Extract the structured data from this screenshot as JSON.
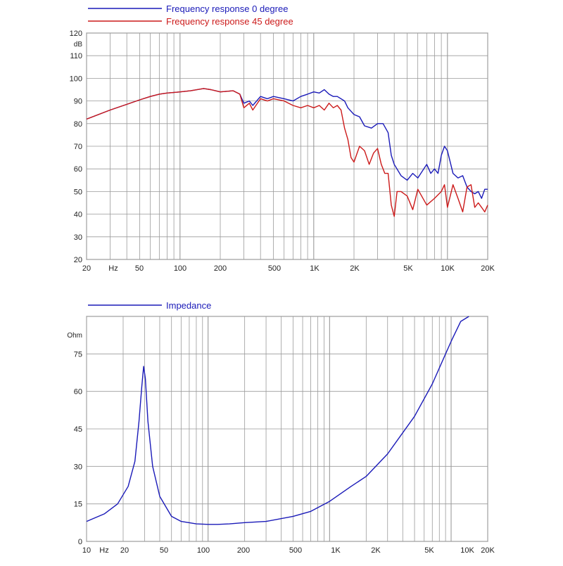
{
  "chart_data": [
    {
      "type": "line",
      "xscale": "log",
      "xlim": [
        20,
        20000
      ],
      "ylim": [
        20,
        120
      ],
      "grid": true,
      "legend_position": "top-left",
      "ylabel": "dB",
      "x_ticks": [
        "20",
        "Hz",
        "50",
        "100",
        "200",
        "500",
        "1K",
        "2K",
        "5K",
        "10K",
        "20K"
      ],
      "y_ticks": [
        "20",
        "30",
        "40",
        "50",
        "60",
        "70",
        "80",
        "90",
        "100",
        "110",
        "120"
      ],
      "colors": {
        "series0": "#1a1ab8",
        "series1": "#cc1a1a"
      },
      "series": [
        {
          "name": "Frequency response 0 degree",
          "x": [
            20,
            30,
            40,
            50,
            60,
            70,
            80,
            100,
            120,
            150,
            170,
            200,
            250,
            280,
            300,
            330,
            350,
            400,
            450,
            500,
            600,
            700,
            800,
            900,
            1000,
            1100,
            1200,
            1300,
            1400,
            1500,
            1700,
            1800,
            2000,
            2200,
            2400,
            2700,
            3000,
            3300,
            3600,
            3800,
            4000,
            4500,
            5000,
            5500,
            6000,
            7000,
            7500,
            8000,
            8500,
            9000,
            9500,
            10000,
            11000,
            12000,
            13000,
            14000,
            15000,
            16000,
            17000,
            18000,
            19000,
            20000
          ],
          "y": [
            82,
            86,
            88.5,
            90.5,
            92,
            93,
            93.5,
            94,
            94.5,
            95.5,
            95,
            94,
            94.5,
            93,
            89,
            90,
            88,
            92,
            91,
            92,
            91,
            90,
            92,
            93,
            94,
            93.5,
            95,
            93,
            92,
            92,
            90,
            87,
            84,
            83,
            79,
            78,
            80,
            80,
            76,
            66,
            62,
            57,
            55,
            58,
            56,
            62,
            58,
            60,
            58,
            66,
            70,
            68,
            58,
            56,
            57,
            52,
            50,
            49,
            50,
            47,
            51,
            51
          ]
        },
        {
          "name": "Frequency response 45 degree",
          "x": [
            20,
            30,
            40,
            50,
            60,
            70,
            80,
            100,
            120,
            150,
            170,
            200,
            250,
            280,
            300,
            330,
            350,
            400,
            450,
            500,
            600,
            700,
            800,
            900,
            1000,
            1100,
            1200,
            1300,
            1400,
            1500,
            1600,
            1700,
            1800,
            1900,
            2000,
            2200,
            2400,
            2600,
            2800,
            3000,
            3200,
            3400,
            3600,
            3800,
            4000,
            4200,
            4500,
            5000,
            5500,
            6000,
            7000,
            8000,
            9000,
            9500,
            10000,
            11000,
            12000,
            13000,
            14000,
            15000,
            16000,
            17000,
            18000,
            19000,
            20000
          ],
          "y": [
            82,
            86,
            88.5,
            90.5,
            92,
            93,
            93.5,
            94,
            94.5,
            95.5,
            95,
            94,
            94.5,
            93,
            87,
            89,
            86,
            91,
            90,
            91,
            90,
            88,
            87,
            88,
            87,
            88,
            86,
            89,
            87,
            88,
            86,
            78,
            73,
            65,
            63,
            70,
            68,
            62,
            67,
            69,
            62,
            58,
            58,
            44,
            39,
            50,
            50,
            48,
            42,
            51,
            44,
            47,
            50,
            53,
            43,
            53,
            47,
            41,
            52,
            53,
            43,
            45,
            43,
            41,
            44
          ]
        }
      ]
    },
    {
      "type": "line",
      "xscale": "log",
      "xlim": [
        10,
        20000
      ],
      "ylim": [
        0,
        90
      ],
      "grid": true,
      "legend_position": "top-left",
      "ylabel": "Ohm",
      "x_ticks": [
        "10",
        "Hz",
        "20",
        "50",
        "100",
        "200",
        "500",
        "1K",
        "2K",
        "5K",
        "10K",
        "20K"
      ],
      "y_ticks": [
        "0",
        "15",
        "30",
        "45",
        "60",
        "75"
      ],
      "colors": {
        "series0": "#1a1ab8"
      },
      "series": [
        {
          "name": "Impedance",
          "x": [
            10,
            14,
            18,
            22,
            25,
            27,
            28.5,
            29.5,
            30.5,
            32,
            35,
            40,
            50,
            60,
            80,
            100,
            120,
            150,
            200,
            300,
            500,
            700,
            1000,
            1500,
            2000,
            3000,
            5000,
            7000,
            10000,
            12000,
            14000
          ],
          "y": [
            8,
            11,
            15,
            22,
            32,
            48,
            62,
            70,
            65,
            48,
            30,
            18,
            10,
            8,
            7,
            6.8,
            6.8,
            7,
            7.5,
            8,
            10,
            12,
            16,
            22,
            26,
            35,
            50,
            63,
            80,
            88,
            94
          ]
        }
      ]
    }
  ]
}
